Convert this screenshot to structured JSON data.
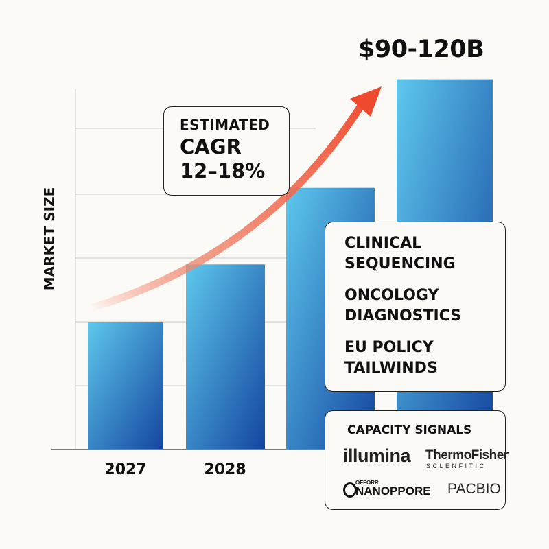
{
  "chart_data": {
    "type": "bar",
    "categories": [
      "2027",
      "2028",
      "",
      ""
    ],
    "values": [
      2.0,
      2.9,
      4.1,
      5.8
    ],
    "ylabel": "MARKET SIZE",
    "xlabel": "",
    "ylim": [
      0,
      6
    ],
    "grid": true,
    "bar_colors": [
      "#5ec8ec",
      "#1445a0"
    ],
    "top_bar_label": "$90-120B",
    "trend_arrow_color": "#f04a2e",
    "annotation": {
      "line1": "ESTIMATED",
      "line2": "CAGR",
      "line3": "12–18%"
    }
  },
  "drivers": [
    "CLINICAL SEQUENCING",
    "ONCOLOGY DIAGNOSTICS",
    "EU POLICY TAILWINDS"
  ],
  "capacity": {
    "title": "CAPACITY SIGNALS",
    "logos": {
      "illumina": "illumina",
      "thermo": "ThermoFisher",
      "thermo_sub": "SCLENFITIC",
      "nano_small": "OFFORR",
      "nano": "NANOPPORE",
      "pacbio": "PACBIO"
    }
  }
}
